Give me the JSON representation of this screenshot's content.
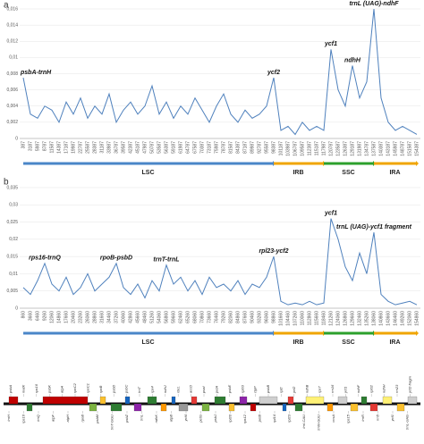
{
  "chart_data": [
    {
      "type": "line",
      "panel": "a",
      "color": "#4f81bd",
      "grid": true,
      "ylim": [
        0,
        0.016
      ],
      "yticks": [
        0,
        {
          "value": 0.002,
          "label": "0,002"
        },
        {
          "value": 0.004,
          "label": "0,004"
        },
        {
          "value": 0.006,
          "label": "0,006"
        },
        {
          "value": 0.008,
          "label": "0,008"
        },
        {
          "value": 0.01,
          "label": "0,01"
        },
        {
          "value": 0.012,
          "label": "0,012"
        },
        {
          "value": 0.014,
          "label": "0,014"
        },
        {
          "value": 0.016,
          "label": "0,016"
        }
      ],
      "categories": [
        "387",
        "3187",
        "5987",
        "8787",
        "11587",
        "14387",
        "17187",
        "19987",
        "22787",
        "25587",
        "28387",
        "31187",
        "33987",
        "36787",
        "39587",
        "42387",
        "45187",
        "47987",
        "50787",
        "53587",
        "56387",
        "59187",
        "61987",
        "64787",
        "67587",
        "70387",
        "73187",
        "75987",
        "78787",
        "81587",
        "84387",
        "87187",
        "89987",
        "92787",
        "95587",
        "98387",
        "101187",
        "103987",
        "106787",
        "109587",
        "112387",
        "115187",
        "117987",
        "120787",
        "123587",
        "126387",
        "129187",
        "131987",
        "134787",
        "137587",
        "140387",
        "143187",
        "145987",
        "148787",
        "151587",
        "154387"
      ],
      "values": [
        0.0075,
        0.003,
        0.0025,
        0.004,
        0.0035,
        0.002,
        0.0045,
        0.003,
        0.005,
        0.0025,
        0.004,
        0.003,
        0.0055,
        0.002,
        0.0035,
        0.0045,
        0.003,
        0.004,
        0.0065,
        0.003,
        0.0045,
        0.0025,
        0.004,
        0.003,
        0.005,
        0.0035,
        0.002,
        0.004,
        0.0055,
        0.003,
        0.002,
        0.0035,
        0.0025,
        0.003,
        0.004,
        0.0075,
        0.001,
        0.0015,
        0.0005,
        0.002,
        0.001,
        0.0015,
        0.001,
        0.011,
        0.006,
        0.004,
        0.009,
        0.005,
        0.007,
        0.016,
        0.005,
        0.002,
        0.001,
        0.0015,
        0.001,
        0.0005
      ],
      "annotations": [
        {
          "text": "psbA-trnH",
          "index": 0
        },
        {
          "text": "ycf2",
          "index": 35
        },
        {
          "text": "ycf1",
          "index": 43
        },
        {
          "text": "ndhH",
          "index": 46
        },
        {
          "text": "trnL (UAG)-ndhF",
          "index": 49
        }
      ],
      "regions": [
        {
          "name": "LSC",
          "color": "#4a86c8",
          "from": 0,
          "to": 35
        },
        {
          "name": "IRB",
          "color": "#f0a500",
          "from": 35,
          "to": 42
        },
        {
          "name": "SSC",
          "color": "#2ca02c",
          "from": 42,
          "to": 49
        },
        {
          "name": "IRA",
          "color": "#f0a500",
          "from": 49,
          "to": 55
        }
      ]
    },
    {
      "type": "line",
      "panel": "b",
      "color": "#4f81bd",
      "grid": true,
      "ylim": [
        0,
        0.035
      ],
      "yticks": [
        0,
        {
          "value": 0.005,
          "label": "0,005"
        },
        {
          "value": 0.01,
          "label": "0,01"
        },
        {
          "value": 0.015,
          "label": "0,015"
        },
        {
          "value": 0.02,
          "label": "0,02"
        },
        {
          "value": 0.025,
          "label": "0,025"
        },
        {
          "value": 0.03,
          "label": "0,03"
        },
        {
          "value": 0.035,
          "label": "0,035"
        }
      ],
      "categories": [
        "860",
        "3660",
        "6460",
        "9260",
        "12060",
        "14860",
        "17660",
        "20460",
        "23260",
        "26060",
        "28860",
        "31660",
        "34460",
        "37260",
        "40060",
        "42860",
        "45660",
        "48460",
        "51260",
        "54060",
        "56860",
        "59660",
        "62460",
        "65260",
        "68060",
        "70860",
        "73660",
        "76460",
        "79260",
        "82060",
        "84860",
        "87660",
        "90460",
        "93260",
        "96060",
        "98860",
        "101660",
        "104460",
        "107260",
        "110060",
        "112860",
        "115660",
        "118460",
        "121260",
        "124060",
        "126860",
        "129660",
        "132460",
        "135260",
        "138060",
        "140860",
        "143660",
        "146460",
        "149260",
        "152060",
        "154860"
      ],
      "values": [
        0.006,
        0.004,
        0.008,
        0.013,
        0.007,
        0.005,
        0.009,
        0.004,
        0.006,
        0.01,
        0.005,
        0.007,
        0.009,
        0.013,
        0.006,
        0.004,
        0.007,
        0.003,
        0.008,
        0.005,
        0.0125,
        0.007,
        0.009,
        0.005,
        0.008,
        0.004,
        0.009,
        0.006,
        0.007,
        0.005,
        0.008,
        0.004,
        0.007,
        0.006,
        0.009,
        0.015,
        0.002,
        0.001,
        0.0015,
        0.001,
        0.002,
        0.001,
        0.0015,
        0.026,
        0.02,
        0.012,
        0.008,
        0.016,
        0.01,
        0.022,
        0.004,
        0.002,
        0.001,
        0.0015,
        0.002,
        0.001
      ],
      "annotations": [
        {
          "text": "rps16-trnQ",
          "index": 3
        },
        {
          "text": "rpoB-psbD",
          "index": 13
        },
        {
          "text": "trnT-trnL",
          "index": 20
        },
        {
          "text": "rpl23-ycf2",
          "index": 35
        },
        {
          "text": "ycf1",
          "index": 43
        },
        {
          "text": "trnL (UAG)-ycf1 fragment",
          "index": 49
        }
      ],
      "regions": [
        {
          "name": "LSC",
          "color": "#4a86c8",
          "from": 0,
          "to": 35
        },
        {
          "name": "IRB",
          "color": "#f0a500",
          "from": 35,
          "to": 42
        },
        {
          "name": "SSC",
          "color": "#2ca02c",
          "from": 42,
          "to": 49
        },
        {
          "name": "IRA",
          "color": "#f0a500",
          "from": 49,
          "to": 55
        }
      ]
    }
  ],
  "genome_map": {
    "genes_top": [
      "psbA",
      "matK",
      "rps16",
      "psbK",
      "atpA",
      "rpoC2",
      "rpoC1",
      "rpoB",
      "psbD",
      "psbC",
      "trnT",
      "rps4",
      "ndhJ",
      "rbcL",
      "accD",
      "psaI",
      "petA",
      "psbE",
      "rpl33",
      "clpP",
      "psbB",
      "rpl2",
      "ycf2",
      "ndhB",
      "rps7",
      "rrn16",
      "ycf1",
      "ndhF",
      "rpl32",
      "ndhH",
      "rrn23",
      "ycf2-fragm"
    ],
    "genes_bottom": [
      "trnH",
      "rps16",
      "trnQ",
      "atpF",
      "atpH",
      "rpoB",
      "psbM",
      "trnT-GGU",
      "psbZ",
      "trnL",
      "ndhK",
      "atpB",
      "ycf4",
      "petG",
      "psbJ",
      "rpl20",
      "rps12",
      "petB",
      "rpl14",
      "rpl23",
      "trnI-CAU",
      "trnN-GUU",
      "ccsA",
      "rps15",
      "trnR",
      "rrn5",
      "ycf1",
      "trnL-UAG"
    ]
  }
}
